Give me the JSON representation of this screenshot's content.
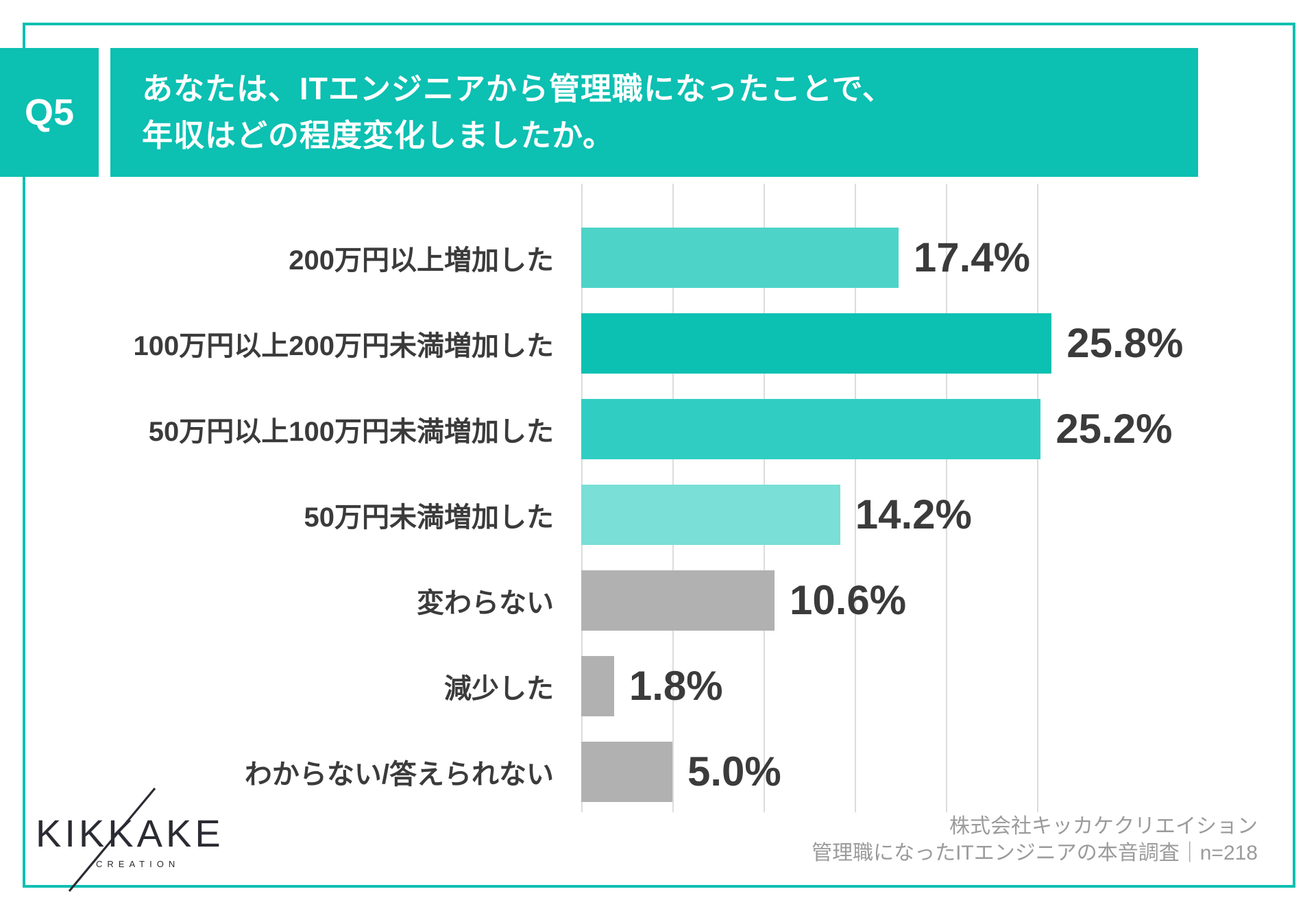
{
  "colors": {
    "brand_teal": "#0cc0b2",
    "grid_line": "#dcdcdc",
    "label_text": "#3b3b3b",
    "source_text": "#9b9b9b",
    "logo_text": "#2b2b33"
  },
  "question": {
    "badge": "Q5",
    "title_line1": "あなたは、ITエンジニアから管理職になったことで、",
    "title_line2": "年収はどの程度変化しましたか。"
  },
  "chart_data": {
    "type": "bar",
    "orientation": "horizontal",
    "title": "あなたは、ITエンジニアから管理職になったことで、年収はどの程度変化しましたか。",
    "xlabel": "",
    "ylabel": "",
    "xlim": [
      0,
      30
    ],
    "grid": true,
    "legend": false,
    "gridline_percents": [
      0,
      5,
      10,
      15,
      20,
      25
    ],
    "categories": [
      "200万円以上増加した",
      "100万円以上200万円未満増加した",
      "50万円以上100万円未満増加した",
      "50万円未満増加した",
      "変わらない",
      "減少した",
      "わからない/答えられない"
    ],
    "values": [
      17.4,
      25.8,
      25.2,
      14.2,
      10.6,
      1.8,
      5.0
    ],
    "value_labels": [
      "17.4%",
      "25.8%",
      "25.2%",
      "14.2%",
      "10.6%",
      "1.8%",
      "5.0%"
    ],
    "bar_colors": [
      "#4ed3c8",
      "#0cc0b2",
      "#30cec2",
      "#7adfd6",
      "#b1b1b1",
      "#b1b1b1",
      "#b1b1b1"
    ]
  },
  "footer": {
    "logo_main": "KIKKAKE",
    "logo_sub": "CREATION",
    "source_line1": "株式会社キッカケクリエイション",
    "source_line2": "管理職になったITエンジニアの本音調査｜n=218"
  }
}
